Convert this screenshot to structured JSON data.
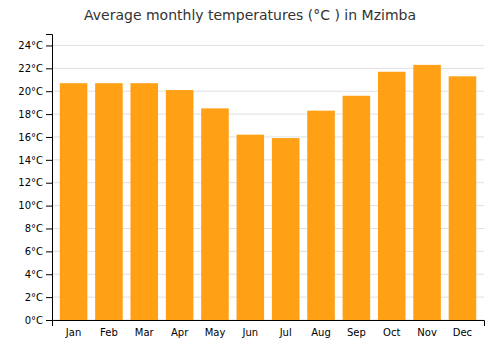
{
  "chart_data": {
    "type": "bar",
    "title": "Average monthly temperatures (°C ) in Mzimba",
    "categories": [
      "Jan",
      "Feb",
      "Mar",
      "Apr",
      "May",
      "Jun",
      "Jul",
      "Aug",
      "Sep",
      "Oct",
      "Nov",
      "Dec"
    ],
    "values": [
      20.7,
      20.7,
      20.7,
      20.1,
      18.5,
      16.2,
      15.9,
      18.3,
      19.6,
      21.7,
      22.3,
      21.3
    ],
    "color": "#FFA015",
    "ylim": [
      0,
      25
    ],
    "yticks": [
      {
        "value": 0,
        "label": "0°C"
      },
      {
        "value": 2,
        "label": "2°C"
      },
      {
        "value": 4,
        "label": "4°C"
      },
      {
        "value": 6,
        "label": "6°C"
      },
      {
        "value": 8,
        "label": "8°C"
      },
      {
        "value": 10,
        "label": "10°C"
      },
      {
        "value": 12,
        "label": "12°C"
      },
      {
        "value": 14,
        "label": "14°C"
      },
      {
        "value": 16,
        "label": "16°C"
      },
      {
        "value": 18,
        "label": "18°C"
      },
      {
        "value": 20,
        "label": "20°C"
      },
      {
        "value": 22,
        "label": "22°C"
      },
      {
        "value": 24,
        "label": "24°C"
      }
    ],
    "grid": true
  }
}
